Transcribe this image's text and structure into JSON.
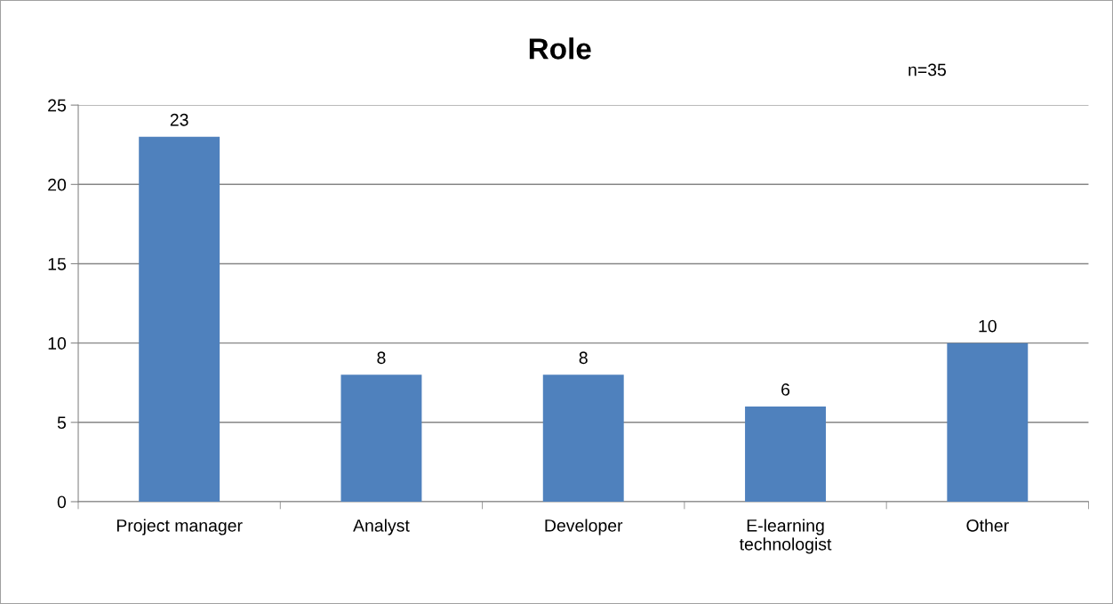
{
  "chart_data": {
    "type": "bar",
    "title": "Role",
    "annotations": [
      "n=35"
    ],
    "categories": [
      "Project manager",
      "Analyst",
      "Developer",
      "E-learning\ntechnologist",
      "Other"
    ],
    "values": [
      23,
      8,
      8,
      6,
      10
    ],
    "color": "#4f81bd",
    "data_labels": true,
    "ylim": [
      0,
      25
    ],
    "yticks": [
      0,
      5,
      10,
      15,
      20,
      25
    ],
    "grid": "y",
    "legend": false
  }
}
